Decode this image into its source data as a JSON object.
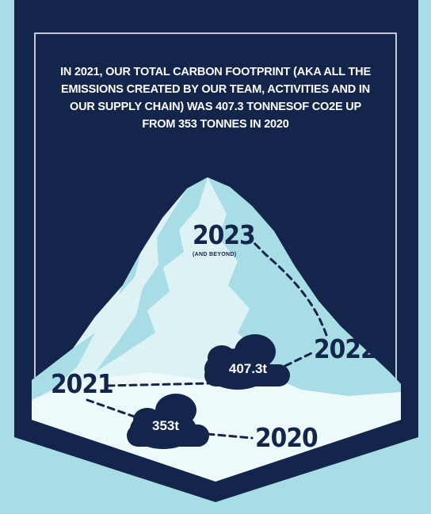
{
  "intro_text": "IN 2021, OUR TOTAL CARBON FOOTPRINT (AKA ALL THE EMISSIONS CREATED BY OUR TEAM, ACTIVITIES AND IN OUR SUPPLY CHAIN) WAS 407.3 TONNESOF CO2E UP FROM 353 TONNES IN 2020",
  "timeline": [
    {
      "year": "2023",
      "note": "(AND BEYOND)"
    },
    {
      "year": "2022"
    },
    {
      "year": "2021",
      "emissions": "407.3t"
    },
    {
      "year": "2020",
      "emissions": "353t"
    }
  ],
  "colors": {
    "background": "#a8dde6",
    "banner": "#13254a",
    "mountain_light": "#dcf2f5",
    "mountain_shadow": "#a8dde6",
    "text_light": "#ffffff"
  }
}
